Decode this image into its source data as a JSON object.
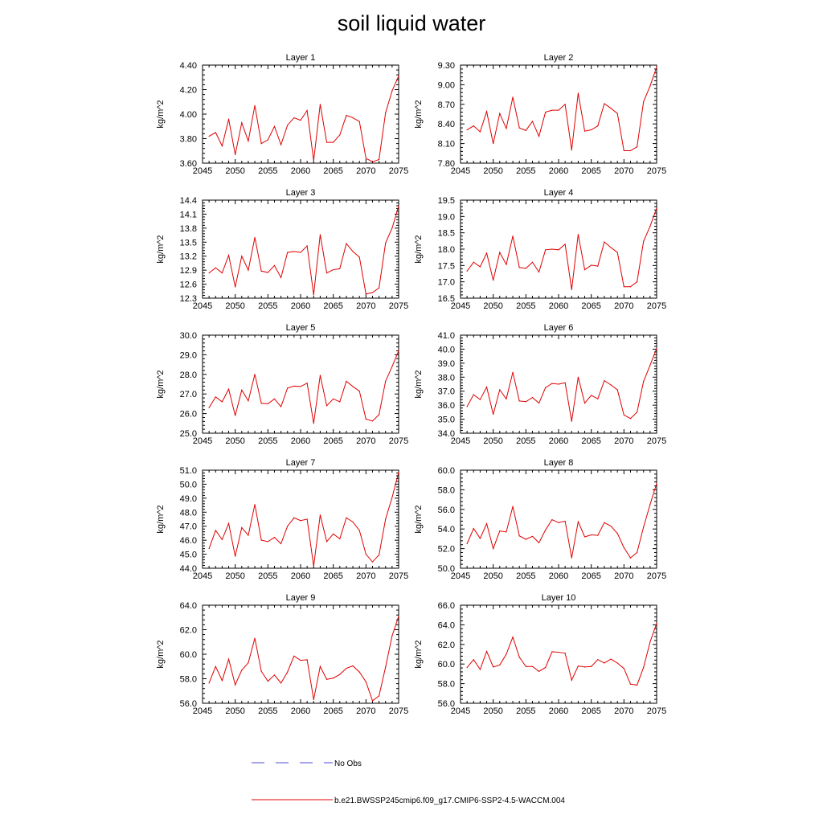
{
  "title": "soil liquid water",
  "legend": {
    "obs_label": "No Obs",
    "obs_color": "#4a4ad6",
    "model_label": "b.e21.BWSSP245cmip6.f09_g17.CMIP6-SSP2-4.5-WACCM.004",
    "model_color": "#e00000"
  },
  "chart_data": [
    {
      "type": "line",
      "title": "Layer 1",
      "xlabel": "",
      "ylabel": "kg/m^2",
      "xlim": [
        2045,
        2075
      ],
      "ylim": [
        3.6,
        4.4
      ],
      "xticks": [
        "2045",
        "2050",
        "2055",
        "2060",
        "2065",
        "2070",
        "2075"
      ],
      "yticks": [
        "3.60",
        "3.80",
        "4.00",
        "4.20",
        "4.40"
      ],
      "x": [
        2046,
        2047,
        2048,
        2049,
        2050,
        2051,
        2052,
        2053,
        2054,
        2055,
        2056,
        2057,
        2058,
        2059,
        2060,
        2061,
        2062,
        2063,
        2064,
        2065,
        2066,
        2067,
        2068,
        2069,
        2070,
        2071,
        2072,
        2073,
        2074,
        2075
      ],
      "series": [
        {
          "values": [
            3.82,
            3.85,
            3.74,
            3.96,
            3.67,
            3.93,
            3.78,
            4.07,
            3.76,
            3.79,
            3.9,
            3.75,
            3.91,
            3.97,
            3.95,
            4.03,
            3.62,
            4.08,
            3.77,
            3.77,
            3.83,
            3.99,
            3.97,
            3.94,
            3.64,
            3.61,
            3.63,
            4.01,
            4.19,
            4.31
          ]
        }
      ]
    },
    {
      "type": "line",
      "title": "Layer 2",
      "xlabel": "",
      "ylabel": "kg/m^2",
      "xlim": [
        2045,
        2075
      ],
      "ylim": [
        7.8,
        9.3
      ],
      "xticks": [
        "2045",
        "2050",
        "2055",
        "2060",
        "2065",
        "2070",
        "2075"
      ],
      "yticks": [
        "7.80",
        "8.10",
        "8.40",
        "8.70",
        "9.00",
        "9.30"
      ],
      "x": [
        2046,
        2047,
        2048,
        2049,
        2050,
        2051,
        2052,
        2053,
        2054,
        2055,
        2056,
        2057,
        2058,
        2059,
        2060,
        2061,
        2062,
        2063,
        2064,
        2065,
        2066,
        2067,
        2068,
        2069,
        2070,
        2071,
        2072,
        2073,
        2074,
        2075
      ],
      "series": [
        {
          "values": [
            8.31,
            8.37,
            8.28,
            8.59,
            8.1,
            8.56,
            8.33,
            8.81,
            8.34,
            8.3,
            8.44,
            8.21,
            8.58,
            8.61,
            8.61,
            8.7,
            8.0,
            8.87,
            8.29,
            8.31,
            8.37,
            8.71,
            8.64,
            8.56,
            7.99,
            7.99,
            8.05,
            8.74,
            8.98,
            9.27
          ]
        }
      ]
    },
    {
      "type": "line",
      "title": "Layer 3",
      "xlabel": "",
      "ylabel": "kg/m^2",
      "xlim": [
        2045,
        2075
      ],
      "ylim": [
        12.3,
        14.4
      ],
      "xticks": [
        "2045",
        "2050",
        "2055",
        "2060",
        "2065",
        "2070",
        "2075"
      ],
      "yticks": [
        "12.3",
        "12.6",
        "12.9",
        "13.2",
        "13.5",
        "13.8",
        "14.1",
        "14.4"
      ],
      "x": [
        2046,
        2047,
        2048,
        2049,
        2050,
        2051,
        2052,
        2053,
        2054,
        2055,
        2056,
        2057,
        2058,
        2059,
        2060,
        2061,
        2062,
        2063,
        2064,
        2065,
        2066,
        2067,
        2068,
        2069,
        2070,
        2071,
        2072,
        2073,
        2074,
        2075
      ],
      "series": [
        {
          "values": [
            12.84,
            12.95,
            12.84,
            13.22,
            12.54,
            13.2,
            12.9,
            13.6,
            12.88,
            12.85,
            13.0,
            12.74,
            13.28,
            13.3,
            13.28,
            13.42,
            12.37,
            13.66,
            12.84,
            12.91,
            12.93,
            13.47,
            13.3,
            13.18,
            12.39,
            12.42,
            12.52,
            13.48,
            13.8,
            14.27
          ]
        }
      ]
    },
    {
      "type": "line",
      "title": "Layer 4",
      "xlabel": "",
      "ylabel": "kg/m^2",
      "xlim": [
        2045,
        2075
      ],
      "ylim": [
        16.5,
        19.5
      ],
      "xticks": [
        "2045",
        "2050",
        "2055",
        "2060",
        "2065",
        "2070",
        "2075"
      ],
      "yticks": [
        "16.5",
        "17.0",
        "17.5",
        "18.0",
        "18.5",
        "19.0",
        "19.5"
      ],
      "x": [
        2046,
        2047,
        2048,
        2049,
        2050,
        2051,
        2052,
        2053,
        2054,
        2055,
        2056,
        2057,
        2058,
        2059,
        2060,
        2061,
        2062,
        2063,
        2064,
        2065,
        2066,
        2067,
        2068,
        2069,
        2070,
        2071,
        2072,
        2073,
        2074,
        2075
      ],
      "series": [
        {
          "values": [
            17.33,
            17.6,
            17.46,
            17.88,
            17.05,
            17.9,
            17.53,
            18.4,
            17.44,
            17.41,
            17.6,
            17.3,
            17.98,
            18.0,
            17.98,
            18.15,
            16.76,
            18.45,
            17.37,
            17.51,
            17.48,
            18.22,
            18.05,
            17.9,
            16.85,
            16.85,
            17.0,
            18.24,
            18.7,
            19.25
          ]
        }
      ]
    },
    {
      "type": "line",
      "title": "Layer 5",
      "xlabel": "",
      "ylabel": "kg/m^2",
      "xlim": [
        2045,
        2075
      ],
      "ylim": [
        25.0,
        30.0
      ],
      "xticks": [
        "2045",
        "2050",
        "2055",
        "2060",
        "2065",
        "2070",
        "2075"
      ],
      "yticks": [
        "25.0",
        "26.0",
        "27.0",
        "28.0",
        "29.0",
        "30.0"
      ],
      "x": [
        2046,
        2047,
        2048,
        2049,
        2050,
        2051,
        2052,
        2053,
        2054,
        2055,
        2056,
        2057,
        2058,
        2059,
        2060,
        2061,
        2062,
        2063,
        2064,
        2065,
        2066,
        2067,
        2068,
        2069,
        2070,
        2071,
        2072,
        2073,
        2074,
        2075
      ],
      "series": [
        {
          "values": [
            26.3,
            26.85,
            26.6,
            27.25,
            25.9,
            27.2,
            26.65,
            28.0,
            26.52,
            26.5,
            26.75,
            26.35,
            27.3,
            27.4,
            27.38,
            27.55,
            25.5,
            27.95,
            26.4,
            26.75,
            26.6,
            27.65,
            27.38,
            27.15,
            25.72,
            25.62,
            25.95,
            27.65,
            28.4,
            29.2
          ]
        }
      ]
    },
    {
      "type": "line",
      "title": "Layer 6",
      "xlabel": "",
      "ylabel": "kg/m^2",
      "xlim": [
        2045,
        2075
      ],
      "ylim": [
        34.0,
        41.0
      ],
      "xticks": [
        "2045",
        "2050",
        "2055",
        "2060",
        "2065",
        "2070",
        "2075"
      ],
      "yticks": [
        "34.0",
        "35.0",
        "36.0",
        "37.0",
        "38.0",
        "39.0",
        "40.0",
        "41.0"
      ],
      "x": [
        2046,
        2047,
        2048,
        2049,
        2050,
        2051,
        2052,
        2053,
        2054,
        2055,
        2056,
        2057,
        2058,
        2059,
        2060,
        2061,
        2062,
        2063,
        2064,
        2065,
        2066,
        2067,
        2068,
        2069,
        2070,
        2071,
        2072,
        2073,
        2074,
        2075
      ],
      "series": [
        {
          "values": [
            35.9,
            36.75,
            36.4,
            37.3,
            35.35,
            37.1,
            36.45,
            38.35,
            36.3,
            36.25,
            36.55,
            36.15,
            37.25,
            37.55,
            37.5,
            37.6,
            34.85,
            38.0,
            36.15,
            36.7,
            36.45,
            37.75,
            37.45,
            37.1,
            35.3,
            35.05,
            35.5,
            37.7,
            38.85,
            40.05
          ]
        }
      ]
    },
    {
      "type": "line",
      "title": "Layer 7",
      "xlabel": "",
      "ylabel": "kg/m^2",
      "xlim": [
        2045,
        2075
      ],
      "ylim": [
        44.0,
        51.0
      ],
      "xticks": [
        "2045",
        "2050",
        "2055",
        "2060",
        "2065",
        "2070",
        "2075"
      ],
      "yticks": [
        "44.0",
        "45.0",
        "46.0",
        "47.0",
        "48.0",
        "49.0",
        "50.0",
        "51.0"
      ],
      "x": [
        2046,
        2047,
        2048,
        2049,
        2050,
        2051,
        2052,
        2053,
        2054,
        2055,
        2056,
        2057,
        2058,
        2059,
        2060,
        2061,
        2062,
        2063,
        2064,
        2065,
        2066,
        2067,
        2068,
        2069,
        2070,
        2071,
        2072,
        2073,
        2074,
        2075
      ],
      "series": [
        {
          "values": [
            45.4,
            46.7,
            46.05,
            47.2,
            44.85,
            46.9,
            46.35,
            48.55,
            46.0,
            45.9,
            46.2,
            45.75,
            47.0,
            47.6,
            47.4,
            47.5,
            44.15,
            47.8,
            45.9,
            46.45,
            46.1,
            47.6,
            47.3,
            46.7,
            45.0,
            44.45,
            44.95,
            47.5,
            49.05,
            50.85
          ]
        }
      ]
    },
    {
      "type": "line",
      "title": "Layer 8",
      "xlabel": "",
      "ylabel": "kg/m^2",
      "xlim": [
        2045,
        2075
      ],
      "ylim": [
        50.0,
        60.0
      ],
      "xticks": [
        "2045",
        "2050",
        "2055",
        "2060",
        "2065",
        "2070",
        "2075"
      ],
      "yticks": [
        "50.0",
        "52.0",
        "54.0",
        "56.0",
        "58.0",
        "60.0"
      ],
      "x": [
        2046,
        2047,
        2048,
        2049,
        2050,
        2051,
        2052,
        2053,
        2054,
        2055,
        2056,
        2057,
        2058,
        2059,
        2060,
        2061,
        2062,
        2063,
        2064,
        2065,
        2066,
        2067,
        2068,
        2069,
        2070,
        2071,
        2072,
        2073,
        2074,
        2075
      ],
      "series": [
        {
          "values": [
            52.5,
            54.05,
            53.05,
            54.55,
            52.0,
            53.8,
            53.7,
            56.3,
            53.3,
            52.95,
            53.25,
            52.6,
            53.9,
            54.95,
            54.65,
            54.8,
            51.05,
            54.75,
            53.2,
            53.4,
            53.35,
            54.65,
            54.3,
            53.55,
            52.1,
            51.05,
            51.6,
            54.2,
            56.5,
            58.65
          ]
        }
      ]
    },
    {
      "type": "line",
      "title": "Layer 9",
      "xlabel": "",
      "ylabel": "kg/m^2",
      "xlim": [
        2045,
        2075
      ],
      "ylim": [
        56.0,
        64.0
      ],
      "xticks": [
        "2045",
        "2050",
        "2055",
        "2060",
        "2065",
        "2070",
        "2075"
      ],
      "yticks": [
        "56.0",
        "58.0",
        "60.0",
        "62.0",
        "64.0"
      ],
      "x": [
        2046,
        2047,
        2048,
        2049,
        2050,
        2051,
        2052,
        2053,
        2054,
        2055,
        2056,
        2057,
        2058,
        2059,
        2060,
        2061,
        2062,
        2063,
        2064,
        2065,
        2066,
        2067,
        2068,
        2069,
        2070,
        2071,
        2072,
        2073,
        2074,
        2075
      ],
      "series": [
        {
          "values": [
            57.65,
            59.0,
            57.85,
            59.6,
            57.5,
            58.7,
            59.3,
            61.3,
            58.6,
            57.8,
            58.3,
            57.65,
            58.55,
            59.85,
            59.5,
            59.55,
            56.3,
            59.0,
            57.95,
            58.05,
            58.35,
            58.85,
            59.05,
            58.55,
            57.75,
            56.2,
            56.6,
            58.95,
            61.5,
            63.1
          ]
        }
      ]
    },
    {
      "type": "line",
      "title": "Layer 10",
      "xlabel": "",
      "ylabel": "kg/m^2",
      "xlim": [
        2045,
        2075
      ],
      "ylim": [
        56.0,
        66.0
      ],
      "xticks": [
        "2045",
        "2050",
        "2055",
        "2060",
        "2065",
        "2070",
        "2075"
      ],
      "yticks": [
        "56.0",
        "58.0",
        "60.0",
        "62.0",
        "64.0",
        "66.0"
      ],
      "x": [
        2046,
        2047,
        2048,
        2049,
        2050,
        2051,
        2052,
        2053,
        2054,
        2055,
        2056,
        2057,
        2058,
        2059,
        2060,
        2061,
        2062,
        2063,
        2064,
        2065,
        2066,
        2067,
        2068,
        2069,
        2070,
        2071,
        2072,
        2073,
        2074,
        2075
      ],
      "series": [
        {
          "values": [
            59.65,
            60.45,
            59.45,
            61.3,
            59.7,
            59.9,
            61.0,
            62.75,
            60.7,
            59.75,
            59.75,
            59.25,
            59.65,
            61.25,
            61.2,
            61.1,
            58.35,
            59.8,
            59.7,
            59.75,
            60.45,
            60.1,
            60.5,
            60.1,
            59.55,
            57.95,
            57.85,
            59.65,
            62.25,
            64.15
          ]
        }
      ]
    }
  ]
}
